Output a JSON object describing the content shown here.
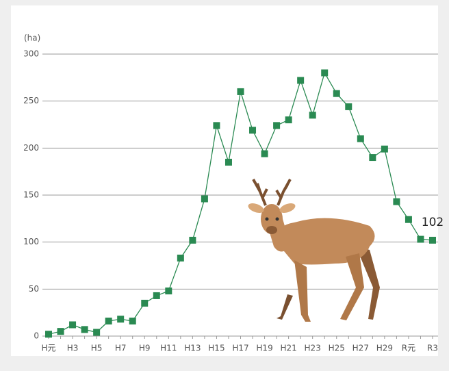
{
  "chart_data": {
    "type": "line",
    "unit_label": "(ha)",
    "categories": [
      "H元",
      null,
      "H3",
      null,
      "H5",
      null,
      "H7",
      null,
      "H9",
      null,
      "H11",
      null,
      "H13",
      null,
      "H15",
      null,
      "H17",
      null,
      "H19",
      null,
      "H21",
      null,
      "H23",
      null,
      "H25",
      null,
      "H27",
      null,
      "H29",
      null,
      "R元",
      null,
      "R3"
    ],
    "series": [
      {
        "color": "#2a8a52",
        "values": [
          2,
          5,
          12,
          7,
          4,
          16,
          18,
          16,
          35,
          43,
          48,
          83,
          102,
          146,
          224,
          185,
          260,
          219,
          194,
          224,
          230,
          272,
          235,
          280,
          258,
          244,
          210,
          190,
          199,
          143,
          124,
          103,
          102
        ]
      }
    ],
    "ylim": [
      0,
      300
    ],
    "yticks": [
      0,
      50,
      100,
      150,
      200,
      250,
      300
    ],
    "grid": true
  }
}
